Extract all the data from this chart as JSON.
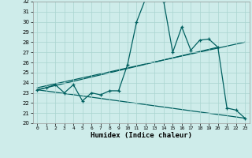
{
  "xlabel": "Humidex (Indice chaleur)",
  "background_color": "#ceecea",
  "grid_color": "#aad4d0",
  "line_color": "#006060",
  "xlim": [
    -0.5,
    23.5
  ],
  "ylim": [
    20,
    32
  ],
  "xticks": [
    0,
    1,
    2,
    3,
    4,
    5,
    6,
    7,
    8,
    9,
    10,
    11,
    12,
    13,
    14,
    15,
    16,
    17,
    18,
    19,
    20,
    21,
    22,
    23
  ],
  "yticks": [
    20,
    21,
    22,
    23,
    24,
    25,
    26,
    27,
    28,
    29,
    30,
    31,
    32
  ],
  "main_x": [
    0,
    1,
    2,
    3,
    4,
    5,
    6,
    7,
    8,
    9,
    10,
    11,
    12,
    13,
    14,
    15,
    16,
    17,
    18,
    19,
    20,
    21,
    22,
    23
  ],
  "main_y": [
    23.3,
    23.5,
    23.8,
    23.0,
    23.8,
    22.2,
    23.0,
    22.8,
    23.2,
    23.2,
    25.8,
    30.0,
    32.3,
    32.3,
    32.0,
    27.0,
    29.5,
    27.2,
    28.2,
    28.3,
    27.5,
    21.5,
    21.3,
    20.5
  ],
  "upper_line_x": [
    0,
    20
  ],
  "upper_line_y": [
    23.3,
    27.5
  ],
  "upper_line2_x": [
    0,
    23
  ],
  "upper_line2_y": [
    23.5,
    28.0
  ],
  "lower_line_x": [
    0,
    23
  ],
  "lower_line_y": [
    23.3,
    20.5
  ]
}
